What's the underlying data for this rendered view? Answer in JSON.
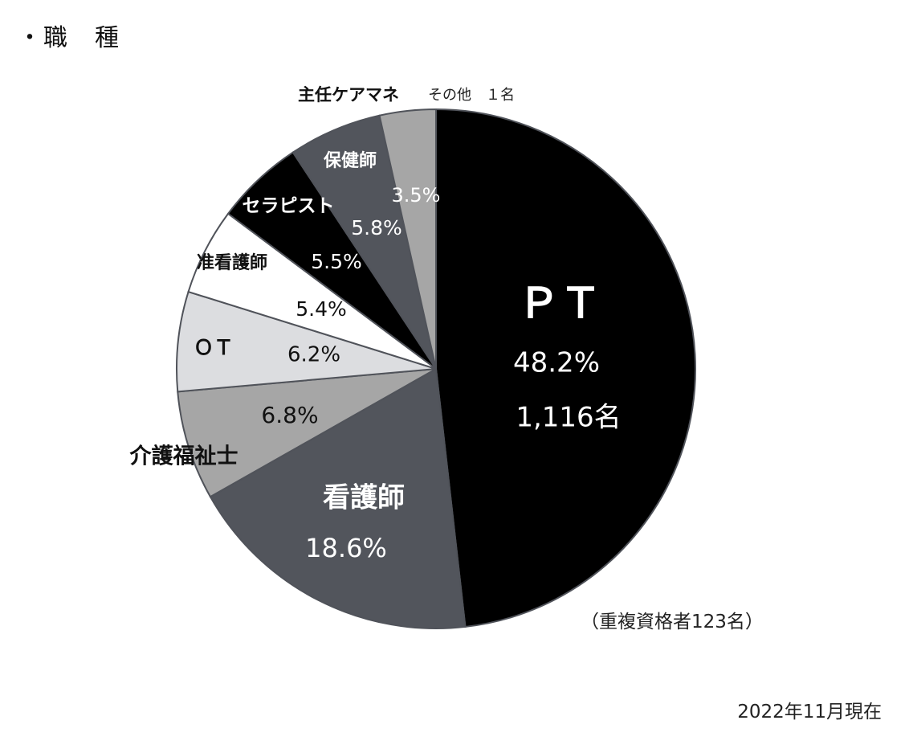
{
  "heading": "・職　種",
  "note": "（重複資格者123名）",
  "as_of": "2022年11月現在",
  "chart_data": {
    "type": "pie",
    "unit": "%",
    "slices": [
      {
        "name": "ＰＴ",
        "value": 48.2,
        "label": "48.2%",
        "count_label": "1,116名",
        "color": "#000000",
        "text_color": "#ffffff"
      },
      {
        "name": "看護師",
        "value": 18.6,
        "label": "18.6%",
        "color": "#52555c",
        "text_color": "#ffffff"
      },
      {
        "name": "介護福祉士",
        "value": 6.8,
        "label": "6.8%",
        "color": "#a6a6a6",
        "text_color": "#111111"
      },
      {
        "name": "ＯＴ",
        "value": 6.2,
        "label": "6.2%",
        "color": "#dcdde0",
        "text_color": "#111111"
      },
      {
        "name": "准看護師",
        "value": 5.4,
        "label": "5.4%",
        "color": "#ffffff",
        "text_color": "#111111"
      },
      {
        "name": "セラピスト",
        "value": 5.5,
        "label": "5.5%",
        "color": "#000000",
        "text_color": "#ffffff"
      },
      {
        "name": "保健師",
        "value": 5.8,
        "label": "5.8%",
        "color": "#52555c",
        "text_color": "#ffffff"
      },
      {
        "name": "主任ケアマネ",
        "value": 3.5,
        "label": "3.5%",
        "color": "#a6a6a6",
        "text_color": "#ffffff"
      }
    ],
    "other_label": "その他　１名"
  }
}
